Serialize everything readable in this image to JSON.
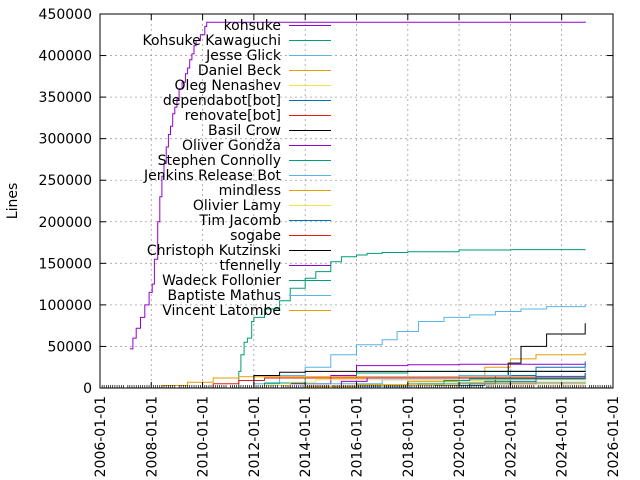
{
  "chart_data": {
    "type": "line",
    "ylabel": "Lines",
    "xlabel": "",
    "title": "",
    "xlim": [
      "2006-01-01",
      "2026-01-01"
    ],
    "ylim": [
      0,
      450000
    ],
    "xticks": [
      "2006-01-01",
      "2008-01-01",
      "2010-01-01",
      "2012-01-01",
      "2014-01-01",
      "2016-01-01",
      "2018-01-01",
      "2020-01-01",
      "2022-01-01",
      "2024-01-01",
      "2026-01-01"
    ],
    "yticks": [
      0,
      50000,
      100000,
      150000,
      200000,
      250000,
      300000,
      350000,
      400000,
      450000
    ],
    "grid": true,
    "legend_position": "top-right",
    "series": [
      {
        "name": "kohsuke",
        "color": "#9400d3",
        "x": [
          "2007-03-01",
          "2007-04-15",
          "2007-06-01",
          "2007-08-01",
          "2007-10-01",
          "2007-12-01",
          "2008-01-15",
          "2008-02-15",
          "2008-04-01",
          "2008-05-01",
          "2008-06-01",
          "2008-07-01",
          "2008-08-01",
          "2008-09-01",
          "2008-10-01",
          "2008-11-01",
          "2008-12-01",
          "2009-01-01",
          "2009-02-01",
          "2009-03-15",
          "2009-05-01",
          "2009-06-01",
          "2009-07-01",
          "2009-08-01",
          "2009-09-01",
          "2009-10-01",
          "2009-12-01",
          "2010-02-01",
          "2010-03-01",
          "2024-12-01"
        ],
        "y": [
          47000,
          60000,
          72000,
          85000,
          100000,
          115000,
          125000,
          155000,
          200000,
          230000,
          255000,
          270000,
          290000,
          305000,
          315000,
          330000,
          338000,
          348000,
          360000,
          368000,
          378000,
          385000,
          395000,
          402000,
          412000,
          418000,
          425000,
          435000,
          440000,
          441000
        ]
      },
      {
        "name": "Kohsuke Kawaguchi",
        "color": "#009e73",
        "x": [
          "2011-03-01",
          "2011-06-01",
          "2011-07-01",
          "2011-08-15",
          "2011-10-01",
          "2011-12-01",
          "2012-01-01",
          "2012-06-01",
          "2013-01-01",
          "2013-06-01",
          "2014-01-01",
          "2014-06-01",
          "2015-01-01",
          "2015-06-01",
          "2016-01-01",
          "2016-06-01",
          "2017-01-01",
          "2018-01-01",
          "2020-01-01",
          "2022-01-01",
          "2024-12-01"
        ],
        "y": [
          0,
          20000,
          40000,
          55000,
          60000,
          80000,
          85000,
          95000,
          105000,
          120000,
          132000,
          140000,
          152000,
          158000,
          160000,
          162000,
          163000,
          164000,
          166000,
          166500,
          167000
        ]
      },
      {
        "name": "Jesse Glick",
        "color": "#56b4e9",
        "x": [
          "2011-01-01",
          "2012-01-01",
          "2013-01-01",
          "2014-01-01",
          "2015-01-01",
          "2016-01-01",
          "2017-01-01",
          "2017-08-01",
          "2018-06-01",
          "2019-06-01",
          "2020-06-01",
          "2021-06-01",
          "2022-06-01",
          "2023-06-01",
          "2024-12-01"
        ],
        "y": [
          0,
          5000,
          15000,
          25000,
          40000,
          52000,
          58000,
          68000,
          80000,
          85000,
          88000,
          92000,
          95000,
          98000,
          101000
        ]
      },
      {
        "name": "Daniel Beck",
        "color": "#e69f00",
        "x": [
          "2012-01-01",
          "2014-01-01",
          "2016-01-01",
          "2018-01-01",
          "2020-01-01",
          "2021-01-01",
          "2022-01-01",
          "2023-01-01",
          "2024-12-01"
        ],
        "y": [
          0,
          2000,
          4000,
          8000,
          15000,
          25000,
          35000,
          40000,
          43000
        ]
      },
      {
        "name": "Oleg Nenashev",
        "color": "#f0e442",
        "x": [
          "2014-01-01",
          "2016-01-01",
          "2018-01-01",
          "2020-01-01",
          "2022-01-01",
          "2024-12-01"
        ],
        "y": [
          0,
          3000,
          6000,
          9000,
          11000,
          12000
        ]
      },
      {
        "name": "dependabot[bot]",
        "color": "#0072b2",
        "x": [
          "2018-01-01",
          "2020-01-01",
          "2022-01-01",
          "2023-01-01",
          "2024-12-01"
        ],
        "y": [
          0,
          5000,
          15000,
          25000,
          32000
        ]
      },
      {
        "name": "renovate[bot]",
        "color": "#e51e10",
        "x": [
          "2020-01-01",
          "2022-01-01",
          "2023-01-01",
          "2024-12-01"
        ],
        "y": [
          0,
          5000,
          12000,
          18000
        ]
      },
      {
        "name": "Basil Crow",
        "color": "#000000",
        "x": [
          "2019-01-01",
          "2020-06-01",
          "2021-06-01",
          "2021-12-01",
          "2022-06-01",
          "2023-06-01",
          "2024-12-01"
        ],
        "y": [
          0,
          5000,
          15000,
          30000,
          50000,
          65000,
          78000
        ]
      },
      {
        "name": "Oliver Gondža",
        "color": "#9400d3",
        "x": [
          "2012-06-01",
          "2013-06-01",
          "2015-01-01",
          "2016-01-01",
          "2018-01-01",
          "2020-01-01",
          "2024-12-01"
        ],
        "y": [
          0,
          5000,
          15000,
          27000,
          28000,
          28500,
          29000
        ]
      },
      {
        "name": "Stephen Connolly",
        "color": "#009e73",
        "x": [
          "2011-06-01",
          "2012-06-01",
          "2014-01-01",
          "2016-01-01",
          "2018-01-01",
          "2024-12-01"
        ],
        "y": [
          0,
          6000,
          12000,
          18000,
          20000,
          21000
        ]
      },
      {
        "name": "Jenkins Release Bot",
        "color": "#56b4e9",
        "x": [
          "2011-01-01",
          "2014-01-01",
          "2017-01-01",
          "2020-01-01",
          "2022-01-01",
          "2024-12-01"
        ],
        "y": [
          0,
          5000,
          10000,
          15000,
          20000,
          25000
        ]
      },
      {
        "name": "mindless",
        "color": "#e69f00",
        "x": [
          "2007-06-01",
          "2008-06-01",
          "2009-06-01",
          "2010-06-01",
          "2011-06-01",
          "2024-12-01"
        ],
        "y": [
          0,
          3000,
          7000,
          12000,
          13500,
          14000
        ]
      },
      {
        "name": "Olivier Lamy",
        "color": "#f0e442",
        "x": [
          "2011-06-01",
          "2012-06-01",
          "2013-06-01",
          "2014-06-01",
          "2024-12-01"
        ],
        "y": [
          0,
          3000,
          7000,
          10000,
          11000
        ]
      },
      {
        "name": "Tim Jacomb",
        "color": "#0072b2",
        "x": [
          "2017-01-01",
          "2019-01-01",
          "2021-01-01",
          "2023-01-01",
          "2024-12-01"
        ],
        "y": [
          0,
          3000,
          8000,
          14000,
          18000
        ]
      },
      {
        "name": "sogabe",
        "color": "#e51e10",
        "x": [
          "2009-01-01",
          "2010-06-01",
          "2011-06-01",
          "2012-06-01",
          "2024-12-01"
        ],
        "y": [
          0,
          5000,
          9000,
          12000,
          12500
        ]
      },
      {
        "name": "Christoph Kutzinski",
        "color": "#000000",
        "x": [
          "2011-06-01",
          "2012-01-01",
          "2013-01-01",
          "2014-01-01",
          "2024-12-01"
        ],
        "y": [
          0,
          15000,
          19000,
          20000,
          20500
        ]
      },
      {
        "name": "tfennelly",
        "color": "#9400d3",
        "x": [
          "2014-06-01",
          "2015-06-01",
          "2016-06-01",
          "2024-12-01"
        ],
        "y": [
          0,
          8000,
          12000,
          13000
        ]
      },
      {
        "name": "Wadeck Follonier",
        "color": "#009e73",
        "x": [
          "2017-06-01",
          "2018-06-01",
          "2019-06-01",
          "2020-06-01",
          "2024-12-01"
        ],
        "y": [
          0,
          5000,
          9000,
          11000,
          12000
        ]
      },
      {
        "name": "Baptiste Mathus",
        "color": "#56b4e9",
        "x": [
          "2014-01-01",
          "2016-01-01",
          "2018-01-01",
          "2020-01-01",
          "2024-12-01"
        ],
        "y": [
          0,
          2000,
          5000,
          7000,
          8000
        ]
      },
      {
        "name": "Vincent Latombe",
        "color": "#e69f00",
        "x": [
          "2012-06-01",
          "2014-01-01",
          "2016-01-01",
          "2020-01-01",
          "2024-12-01"
        ],
        "y": [
          0,
          2000,
          3500,
          5000,
          6000
        ]
      }
    ]
  }
}
